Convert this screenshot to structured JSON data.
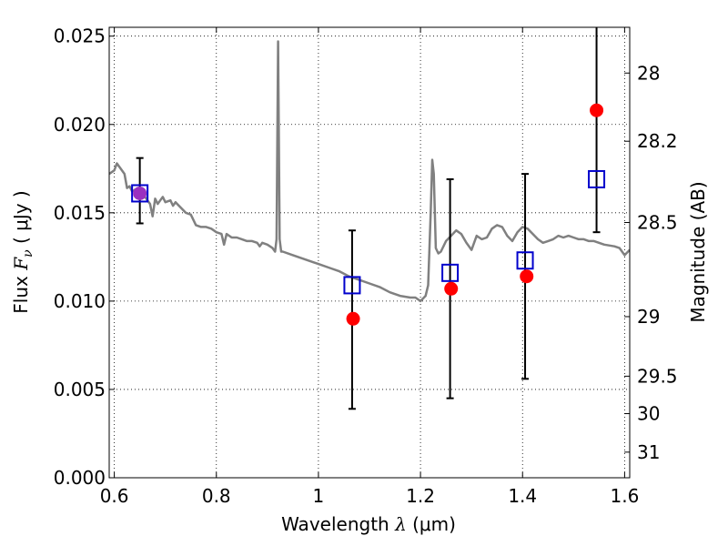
{
  "chart_data": {
    "type": "scatter",
    "title": "",
    "xlabel": {
      "text": "Wavelength",
      "symbol": "λ",
      "unit": "(μm)"
    },
    "ylabel": {
      "text": "Flux",
      "symbol": "F",
      "subscript": "ν",
      "unit": "( μJy )"
    },
    "y2label": "Magnitude (AB)",
    "xlim": [
      0.59,
      1.61
    ],
    "ylim": [
      0.0,
      0.0255
    ],
    "grid": true,
    "grid_style": "dotted",
    "xticks": [
      0.6,
      0.8,
      1.0,
      1.2,
      1.4,
      1.6
    ],
    "xtick_labels": [
      "0.6",
      "0.8",
      "1",
      "1.2",
      "1.4",
      "1.6"
    ],
    "yticks": [
      0.0,
      0.005,
      0.01,
      0.015,
      0.02,
      0.025
    ],
    "ytick_labels": [
      "0.000",
      "0.005",
      "0.010",
      "0.015",
      "0.020",
      "0.025"
    ],
    "y2ticks": [
      {
        "label": "28",
        "flux": 0.02291
      },
      {
        "label": "28.2",
        "flux": 0.01905
      },
      {
        "label": "28.5",
        "flux": 0.01445
      },
      {
        "label": "29",
        "flux": 0.00912
      },
      {
        "label": "29.5",
        "flux": 0.00575
      },
      {
        "label": "30",
        "flux": 0.00363
      },
      {
        "label": "31",
        "flux": 0.00145
      }
    ],
    "series": [
      {
        "kind": "line",
        "color": "#808080",
        "points": [
          [
            0.59,
            0.0172
          ],
          [
            0.6,
            0.0174
          ],
          [
            0.605,
            0.0178
          ],
          [
            0.61,
            0.0176
          ],
          [
            0.62,
            0.0172
          ],
          [
            0.625,
            0.0164
          ],
          [
            0.63,
            0.0165
          ],
          [
            0.635,
            0.0162
          ],
          [
            0.64,
            0.0163
          ],
          [
            0.65,
            0.016
          ],
          [
            0.66,
            0.0159
          ],
          [
            0.665,
            0.0157
          ],
          [
            0.67,
            0.0155
          ],
          [
            0.675,
            0.0148
          ],
          [
            0.68,
            0.0158
          ],
          [
            0.685,
            0.0155
          ],
          [
            0.69,
            0.0157
          ],
          [
            0.695,
            0.0159
          ],
          [
            0.7,
            0.0156
          ],
          [
            0.71,
            0.0157
          ],
          [
            0.715,
            0.0154
          ],
          [
            0.72,
            0.0156
          ],
          [
            0.73,
            0.0153
          ],
          [
            0.74,
            0.015
          ],
          [
            0.75,
            0.0149
          ],
          [
            0.76,
            0.0143
          ],
          [
            0.77,
            0.0142
          ],
          [
            0.78,
            0.0142
          ],
          [
            0.79,
            0.0141
          ],
          [
            0.8,
            0.0139
          ],
          [
            0.81,
            0.0138
          ],
          [
            0.815,
            0.0132
          ],
          [
            0.82,
            0.0138
          ],
          [
            0.83,
            0.0136
          ],
          [
            0.84,
            0.0136
          ],
          [
            0.85,
            0.0135
          ],
          [
            0.86,
            0.0134
          ],
          [
            0.87,
            0.0134
          ],
          [
            0.88,
            0.0133
          ],
          [
            0.885,
            0.0131
          ],
          [
            0.89,
            0.0133
          ],
          [
            0.9,
            0.0132
          ],
          [
            0.91,
            0.013
          ],
          [
            0.915,
            0.0128
          ],
          [
            0.918,
            0.0135
          ],
          [
            0.921,
            0.0247
          ],
          [
            0.924,
            0.0135
          ],
          [
            0.927,
            0.0128
          ],
          [
            0.93,
            0.0128
          ],
          [
            0.95,
            0.0126
          ],
          [
            0.97,
            0.0124
          ],
          [
            0.99,
            0.0122
          ],
          [
            1.0,
            0.0121
          ],
          [
            1.02,
            0.0119
          ],
          [
            1.04,
            0.0117
          ],
          [
            1.06,
            0.0114
          ],
          [
            1.08,
            0.0112
          ],
          [
            1.1,
            0.011
          ],
          [
            1.12,
            0.0108
          ],
          [
            1.14,
            0.0105
          ],
          [
            1.16,
            0.0103
          ],
          [
            1.18,
            0.0102
          ],
          [
            1.19,
            0.0102
          ],
          [
            1.2,
            0.01
          ],
          [
            1.21,
            0.0103
          ],
          [
            1.215,
            0.0109
          ],
          [
            1.22,
            0.015
          ],
          [
            1.223,
            0.018
          ],
          [
            1.226,
            0.0172
          ],
          [
            1.23,
            0.013
          ],
          [
            1.235,
            0.0127
          ],
          [
            1.24,
            0.0128
          ],
          [
            1.25,
            0.0134
          ],
          [
            1.26,
            0.0137
          ],
          [
            1.27,
            0.014
          ],
          [
            1.28,
            0.0138
          ],
          [
            1.29,
            0.0133
          ],
          [
            1.3,
            0.0129
          ],
          [
            1.31,
            0.0137
          ],
          [
            1.32,
            0.0135
          ],
          [
            1.33,
            0.0136
          ],
          [
            1.34,
            0.0141
          ],
          [
            1.35,
            0.0143
          ],
          [
            1.36,
            0.0142
          ],
          [
            1.37,
            0.0137
          ],
          [
            1.38,
            0.0134
          ],
          [
            1.39,
            0.0139
          ],
          [
            1.4,
            0.0142
          ],
          [
            1.41,
            0.0141
          ],
          [
            1.42,
            0.0138
          ],
          [
            1.43,
            0.0135
          ],
          [
            1.44,
            0.0133
          ],
          [
            1.45,
            0.0134
          ],
          [
            1.46,
            0.0135
          ],
          [
            1.47,
            0.0137
          ],
          [
            1.48,
            0.0136
          ],
          [
            1.49,
            0.0137
          ],
          [
            1.5,
            0.0136
          ],
          [
            1.51,
            0.0135
          ],
          [
            1.52,
            0.0135
          ],
          [
            1.53,
            0.0134
          ],
          [
            1.54,
            0.0134
          ],
          [
            1.56,
            0.0132
          ],
          [
            1.58,
            0.0131
          ],
          [
            1.59,
            0.013
          ],
          [
            1.6,
            0.0126
          ],
          [
            1.61,
            0.0129
          ]
        ]
      },
      {
        "kind": "open-square",
        "color": "#0000cc",
        "points": [
          {
            "x": 0.65,
            "y": 0.0161,
            "yerr_low": 0.0144,
            "yerr_high": 0.0181
          },
          {
            "x": 1.066,
            "y": 0.0109,
            "yerr_low": 0.0039,
            "yerr_high": 0.014
          },
          {
            "x": 1.258,
            "y": 0.0116,
            "yerr_low": 0.0045,
            "yerr_high": 0.0169
          },
          {
            "x": 1.405,
            "y": 0.0123,
            "yerr_low": 0.0056,
            "yerr_high": 0.0172
          },
          {
            "x": 1.545,
            "y": 0.0169,
            "yerr_low": 0.0139,
            "yerr_high": 0.0255
          }
        ]
      },
      {
        "kind": "filled-circle",
        "color": "#ff0000",
        "points": [
          {
            "x": 1.068,
            "y": 0.009
          },
          {
            "x": 1.26,
            "y": 0.0107
          },
          {
            "x": 1.408,
            "y": 0.0114
          },
          {
            "x": 1.545,
            "y": 0.0208
          }
        ]
      },
      {
        "kind": "filled-circle",
        "color": "#9b30c0",
        "points": [
          {
            "x": 0.65,
            "y": 0.0161
          }
        ]
      }
    ]
  }
}
